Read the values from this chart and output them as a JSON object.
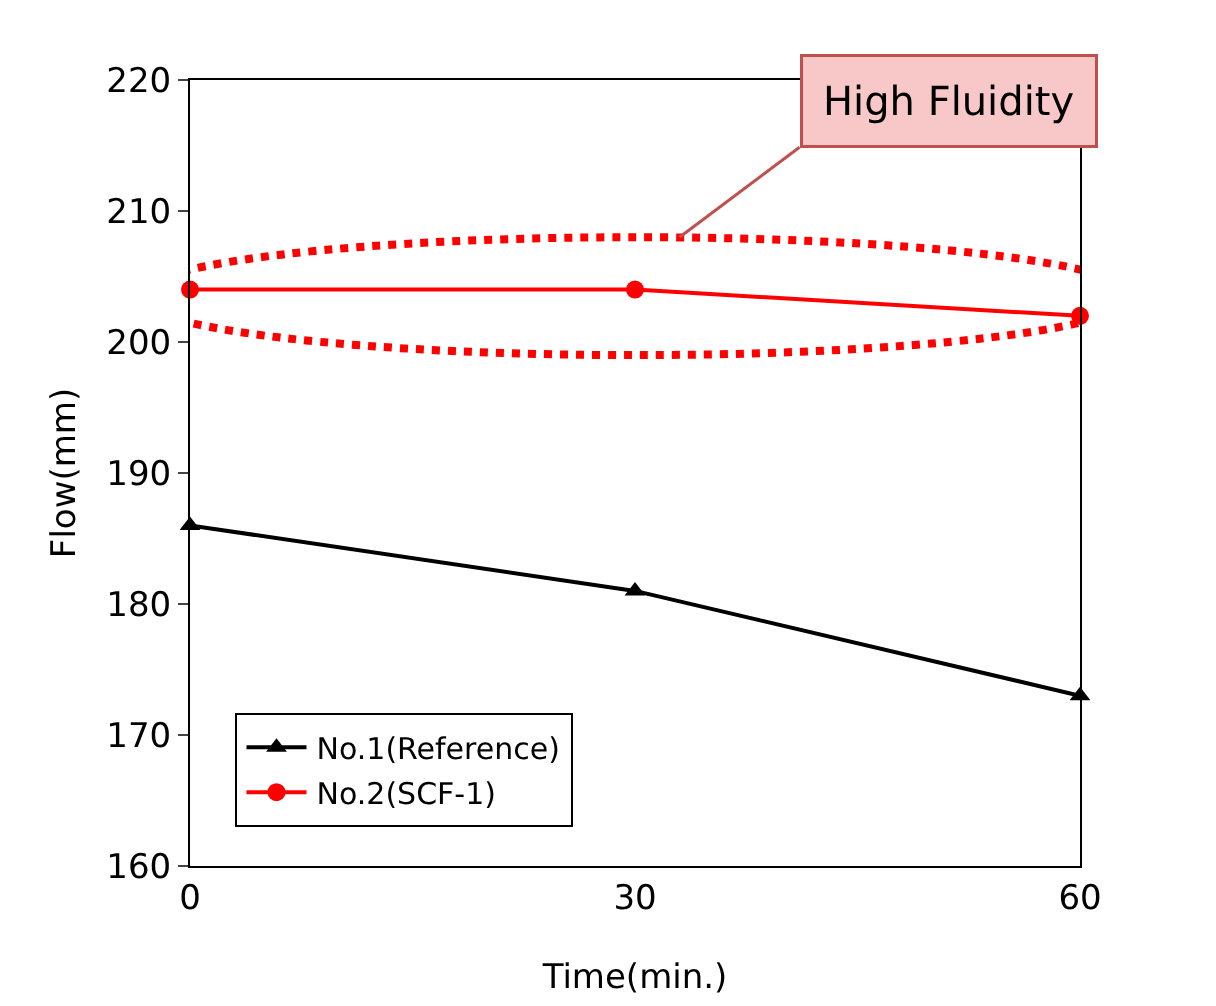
{
  "chart_data": {
    "type": "line",
    "xlabel": "Time(min.)",
    "ylabel": "Flow(mm)",
    "x": [
      0,
      30,
      60
    ],
    "series": [
      {
        "name": "No.1(Reference)",
        "color": "#000000",
        "marker": "triangle",
        "values": [
          186,
          181,
          173
        ]
      },
      {
        "name": "No.2(SCF-1)",
        "color": "#ff0000",
        "marker": "circle",
        "values": [
          204,
          204,
          202
        ]
      }
    ],
    "xlim": [
      0,
      60
    ],
    "xticks": [
      0,
      30,
      60
    ],
    "ylim": [
      160,
      220
    ],
    "yticks": [
      160,
      170,
      180,
      190,
      200,
      210,
      220
    ],
    "grid": false,
    "legend": "bottom left",
    "line_style": "solid",
    "annotations": [
      "High Fluidity"
    ]
  }
}
